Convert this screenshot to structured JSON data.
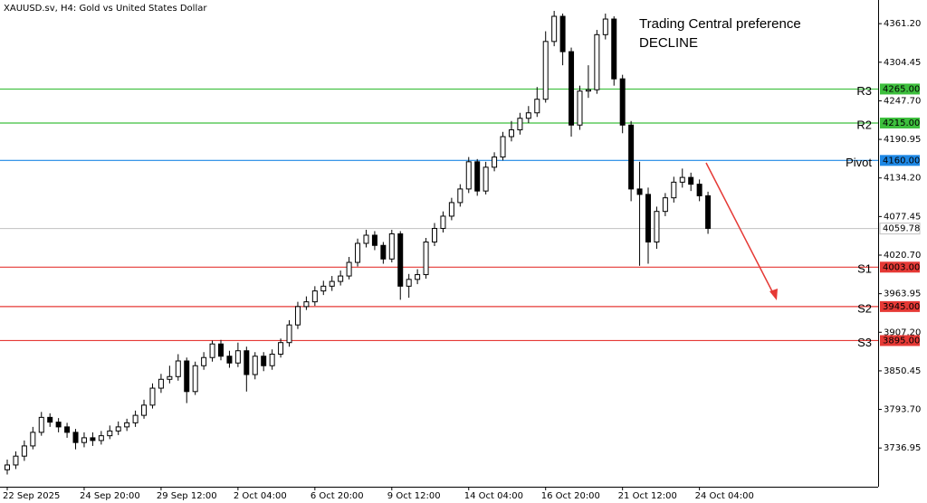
{
  "chart_data": {
    "type": "candlestick",
    "title": "XAUUSD.sv, H4:  Gold vs United States Dollar",
    "annotation": [
      "Trading Central preference",
      "DECLINE"
    ],
    "annotation_color": "#f23b3b",
    "categories": [
      "22 Sep 2025",
      null,
      null,
      null,
      null,
      null,
      null,
      null,
      null,
      "24 Sep 20:00",
      null,
      null,
      null,
      null,
      null,
      null,
      null,
      null,
      "29 Sep 12:00",
      null,
      null,
      null,
      null,
      null,
      null,
      null,
      null,
      "2 Oct 04:00",
      null,
      null,
      null,
      null,
      null,
      null,
      null,
      null,
      "6 Oct 20:00",
      null,
      null,
      null,
      null,
      null,
      null,
      null,
      null,
      "9 Oct 12:00",
      null,
      null,
      null,
      null,
      null,
      null,
      null,
      null,
      "14 Oct 04:00",
      null,
      null,
      null,
      null,
      null,
      null,
      null,
      null,
      "16 Oct 20:00",
      null,
      null,
      null,
      null,
      null,
      null,
      null,
      null,
      "21 Oct 12:00",
      null,
      null,
      null,
      null,
      null,
      null,
      null,
      null,
      "24 Oct 04:00",
      null
    ],
    "open": [
      3705,
      3712,
      3725,
      3740,
      3760,
      3782,
      3775,
      3768,
      3760,
      3745,
      3752,
      3748,
      3755,
      3762,
      3768,
      3774,
      3785,
      3800,
      3825,
      3838,
      3842,
      3865,
      3820,
      3858,
      3870,
      3890,
      3872,
      3862,
      3880,
      3845,
      3872,
      3858,
      3875,
      3892,
      3918,
      3945,
      3952,
      3968,
      3975,
      3982,
      3990,
      4010,
      4038,
      4050,
      4035,
      4015,
      4052,
      3975,
      3985,
      3992,
      4040,
      4060,
      4078,
      4098,
      4118,
      4158,
      4115,
      4150,
      4165,
      4195,
      4205,
      4222,
      4230,
      4250,
      4335,
      4372,
      4320,
      4212,
      4262,
      4264,
      4345,
      4368,
      4280,
      4212,
      4118,
      4110,
      4040,
      4085,
      4105,
      4128,
      4135,
      4125,
      4108
    ],
    "high": [
      3720,
      3732,
      3748,
      3768,
      3790,
      3788,
      3781,
      3774,
      3765,
      3760,
      3760,
      3762,
      3770,
      3776,
      3780,
      3792,
      3808,
      3832,
      3846,
      3858,
      3875,
      3870,
      3864,
      3878,
      3895,
      3896,
      3880,
      3892,
      3886,
      3878,
      3878,
      3882,
      3898,
      3925,
      3952,
      3960,
      3975,
      3983,
      3990,
      3998,
      4018,
      4045,
      4058,
      4056,
      4040,
      4058,
      4056,
      3993,
      4000,
      4046,
      4068,
      4085,
      4105,
      4125,
      4165,
      4162,
      4158,
      4172,
      4202,
      4218,
      4230,
      4240,
      4268,
      4350,
      4380,
      4376,
      4326,
      4270,
      4300,
      4352,
      4376,
      4372,
      4286,
      4218,
      4158,
      4120,
      4092,
      4112,
      4136,
      4148,
      4142,
      4132,
      4114
    ],
    "low": [
      3698,
      3706,
      3718,
      3735,
      3755,
      3768,
      3760,
      3752,
      3735,
      3738,
      3740,
      3742,
      3750,
      3756,
      3762,
      3768,
      3780,
      3795,
      3818,
      3832,
      3836,
      3803,
      3815,
      3852,
      3864,
      3866,
      3855,
      3856,
      3820,
      3838,
      3850,
      3852,
      3870,
      3886,
      3912,
      3940,
      3946,
      3962,
      3968,
      3976,
      3985,
      4004,
      4032,
      4028,
      4008,
      4010,
      3955,
      3958,
      3978,
      3986,
      4034,
      4054,
      4072,
      4092,
      4112,
      4108,
      4110,
      4144,
      4160,
      4188,
      4198,
      4215,
      4224,
      4245,
      4328,
      4300,
      4195,
      4205,
      4252,
      4258,
      4338,
      4270,
      4200,
      4100,
      4005,
      4008,
      4030,
      4078,
      4098,
      4120,
      4115,
      4100,
      4052
    ],
    "close": [
      3712,
      3725,
      3740,
      3760,
      3782,
      3775,
      3768,
      3760,
      3745,
      3752,
      3748,
      3755,
      3762,
      3768,
      3774,
      3785,
      3800,
      3825,
      3838,
      3842,
      3865,
      3820,
      3858,
      3870,
      3890,
      3872,
      3862,
      3880,
      3845,
      3872,
      3858,
      3875,
      3892,
      3918,
      3945,
      3952,
      3968,
      3975,
      3982,
      3990,
      4010,
      4038,
      4050,
      4035,
      4015,
      4052,
      3975,
      3985,
      3992,
      4040,
      4060,
      4078,
      4098,
      4118,
      4158,
      4115,
      4150,
      4165,
      4195,
      4205,
      4222,
      4230,
      4250,
      4335,
      4372,
      4320,
      4212,
      4262,
      4264,
      4345,
      4368,
      4280,
      4212,
      4118,
      4110,
      4040,
      4085,
      4105,
      4128,
      4135,
      4125,
      4108,
      4060
    ],
    "up_color": "#ffffff",
    "down_color": "#000000",
    "ylim": [
      3680,
      4396
    ],
    "yticks": [
      {
        "value": 3736.95,
        "label": "3736.95"
      },
      {
        "value": 3793.7,
        "label": "3793.70"
      },
      {
        "value": 3850.45,
        "label": "3850.45"
      },
      {
        "value": 3907.2,
        "label": "3907.20"
      },
      {
        "value": 3963.95,
        "label": "3963.95"
      },
      {
        "value": 4020.7,
        "label": "4020.70"
      },
      {
        "value": 4077.45,
        "label": "4077.45"
      },
      {
        "value": 4134.2,
        "label": "4134.20"
      },
      {
        "value": 4190.95,
        "label": "4190.95"
      },
      {
        "value": 4247.7,
        "label": "4247.70"
      },
      {
        "value": 4304.45,
        "label": "4304.45"
      },
      {
        "value": 4361.2,
        "label": "4361.20"
      }
    ],
    "levels": [
      {
        "name": "R3",
        "value": 4265,
        "value_label": "4265.00",
        "color": "#3dbf3d"
      },
      {
        "name": "R2",
        "value": 4215,
        "value_label": "4215.00",
        "color": "#3dbf3d"
      },
      {
        "name": "Pivot",
        "value": 4160,
        "value_label": "4160.00",
        "color": "#1e88e5"
      },
      {
        "name": "S1",
        "value": 4003,
        "value_label": "4003.00",
        "color": "#e53935"
      },
      {
        "name": "S2",
        "value": 3945,
        "value_label": "3945.00",
        "color": "#e53935"
      },
      {
        "name": "S3",
        "value": 3895,
        "value_label": "3895.00",
        "color": "#e53935"
      }
    ],
    "last_price": 4059.78,
    "last_price_color": "#c0c0c0"
  }
}
